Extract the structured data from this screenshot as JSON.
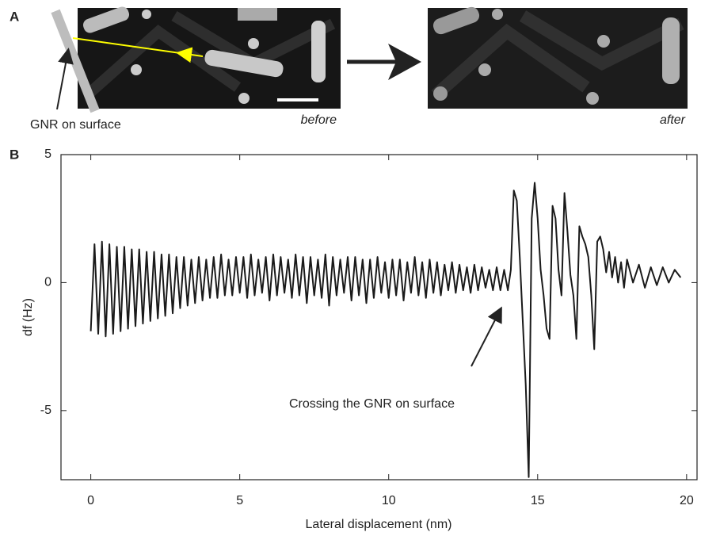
{
  "panel_labels": [
    "A",
    "B"
  ],
  "images": {
    "left_label": "GNR on surface",
    "before": "before",
    "after": "after"
  },
  "chart_data": {
    "type": "line",
    "ylabel": "df (Hz)",
    "xlabel": "Lateral displacement (nm)",
    "annotation": "Crossing the GNR on surface",
    "color": "#1a1a1a",
    "xlim": [
      -1,
      20.35
    ],
    "ylim": [
      -7.7,
      5
    ],
    "xticks": [
      0,
      5,
      10,
      15,
      20
    ],
    "yticks": [
      -5,
      0,
      5
    ],
    "x": [
      0,
      0.125,
      0.25,
      0.375,
      0.5,
      0.625,
      0.75,
      0.875,
      1,
      1.125,
      1.25,
      1.375,
      1.5,
      1.625,
      1.75,
      1.875,
      2,
      2.125,
      2.25,
      2.375,
      2.5,
      2.625,
      2.75,
      2.875,
      3,
      3.125,
      3.25,
      3.375,
      3.5,
      3.625,
      3.75,
      3.875,
      4,
      4.125,
      4.25,
      4.375,
      4.5,
      4.625,
      4.75,
      4.875,
      5,
      5.125,
      5.25,
      5.375,
      5.5,
      5.625,
      5.75,
      5.875,
      6,
      6.125,
      6.25,
      6.375,
      6.5,
      6.625,
      6.75,
      6.875,
      7,
      7.125,
      7.25,
      7.375,
      7.5,
      7.625,
      7.75,
      7.875,
      8,
      8.125,
      8.25,
      8.375,
      8.5,
      8.625,
      8.75,
      8.875,
      9,
      9.125,
      9.25,
      9.375,
      9.5,
      9.625,
      9.75,
      9.875,
      10,
      10.125,
      10.25,
      10.375,
      10.5,
      10.625,
      10.75,
      10.875,
      11,
      11.125,
      11.25,
      11.375,
      11.5,
      11.625,
      11.75,
      11.875,
      12,
      12.125,
      12.25,
      12.375,
      12.5,
      12.625,
      12.75,
      12.875,
      13,
      13.125,
      13.25,
      13.375,
      13.5,
      13.625,
      13.75,
      13.875,
      14,
      14.1,
      14.2,
      14.3,
      14.4,
      14.5,
      14.6,
      14.7,
      14.8,
      14.9,
      15,
      15.1,
      15.2,
      15.3,
      15.4,
      15.5,
      15.6,
      15.7,
      15.8,
      15.9,
      16,
      16.1,
      16.2,
      16.3,
      16.4,
      16.5,
      16.6,
      16.7,
      16.8,
      16.9,
      17,
      17.1,
      17.2,
      17.3,
      17.4,
      17.5,
      17.6,
      17.7,
      17.8,
      17.9,
      18,
      18.2,
      18.4,
      18.6,
      18.8,
      19,
      19.2,
      19.4,
      19.6,
      19.8
    ],
    "values": [
      -1.9,
      1.5,
      -2.0,
      1.6,
      -2.1,
      1.5,
      -2.0,
      1.4,
      -1.9,
      1.4,
      -1.8,
      1.3,
      -1.7,
      1.3,
      -1.6,
      1.2,
      -1.5,
      1.2,
      -1.4,
      1.1,
      -1.3,
      1.1,
      -1.2,
      1.0,
      -1.0,
      1.0,
      -0.9,
      0.9,
      -0.8,
      1.0,
      -0.7,
      0.9,
      -0.6,
      1.0,
      -0.6,
      1.1,
      -0.5,
      0.9,
      -0.5,
      1.0,
      -0.4,
      1.0,
      -0.6,
      1.1,
      -0.5,
      0.9,
      -0.4,
      1.0,
      -0.7,
      1.1,
      -0.5,
      1.0,
      -0.4,
      0.9,
      -0.6,
      1.1,
      -0.5,
      1.0,
      -0.8,
      1.0,
      -0.5,
      0.9,
      -0.6,
      1.1,
      -0.9,
      1.0,
      -0.5,
      0.9,
      -0.4,
      1.0,
      -0.7,
      1.0,
      -0.5,
      0.9,
      -0.8,
      0.9,
      -0.6,
      1.0,
      -0.4,
      0.8,
      -0.6,
      0.9,
      -0.5,
      0.9,
      -0.7,
      0.8,
      -0.4,
      1.0,
      -0.5,
      0.8,
      -0.6,
      0.9,
      -0.4,
      0.8,
      -0.5,
      0.7,
      -0.3,
      0.8,
      -0.4,
      0.7,
      -0.3,
      0.6,
      -0.4,
      0.7,
      -0.3,
      0.6,
      -0.2,
      0.5,
      -0.3,
      0.6,
      -0.3,
      0.5,
      -0.3,
      0.5,
      3.6,
      3.2,
      1.0,
      -1.5,
      -4.0,
      -7.6,
      2.5,
      3.9,
      2.5,
      0.5,
      -0.5,
      -1.8,
      -2.2,
      3.0,
      2.5,
      0.5,
      -0.5,
      3.5,
      2.0,
      0.3,
      -0.5,
      -2.2,
      2.2,
      1.8,
      1.5,
      1.0,
      -0.5,
      -2.6,
      1.6,
      1.8,
      1.3,
      0.4,
      1.2,
      0.2,
      1.0,
      0.0,
      0.8,
      -0.2,
      0.9,
      0.0,
      0.7,
      -0.2,
      0.6,
      -0.1,
      0.6,
      0.0,
      0.5,
      0.2
    ]
  }
}
